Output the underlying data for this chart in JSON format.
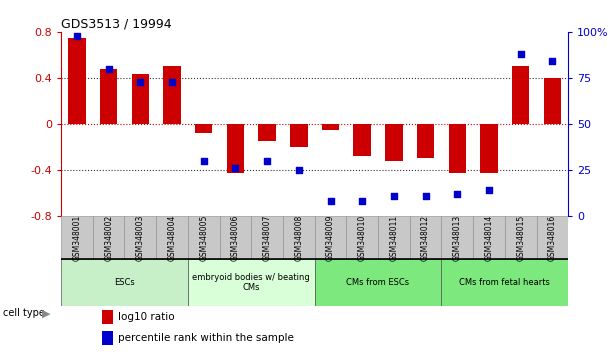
{
  "title": "GDS3513 / 19994",
  "samples": [
    "GSM348001",
    "GSM348002",
    "GSM348003",
    "GSM348004",
    "GSM348005",
    "GSM348006",
    "GSM348007",
    "GSM348008",
    "GSM348009",
    "GSM348010",
    "GSM348011",
    "GSM348012",
    "GSM348013",
    "GSM348014",
    "GSM348015",
    "GSM348016"
  ],
  "log10_ratio": [
    0.75,
    0.48,
    0.43,
    0.5,
    -0.08,
    -0.43,
    -0.15,
    -0.2,
    -0.05,
    -0.28,
    -0.32,
    -0.3,
    -0.43,
    -0.43,
    0.5,
    0.4
  ],
  "percentile_rank": [
    98,
    80,
    73,
    73,
    30,
    26,
    30,
    25,
    8,
    8,
    11,
    11,
    12,
    14,
    88,
    84
  ],
  "ylim": [
    -0.8,
    0.8
  ],
  "y2lim": [
    0,
    100
  ],
  "yticks": [
    -0.8,
    -0.4,
    0.0,
    0.4,
    0.8
  ],
  "ytick_labels": [
    "-0.8",
    "-0.4",
    "0",
    "0.4",
    "0.8"
  ],
  "y2ticks": [
    0,
    25,
    50,
    75,
    100
  ],
  "y2ticklabels": [
    "0",
    "25",
    "50",
    "75",
    "100%"
  ],
  "bar_color": "#cc0000",
  "dot_color": "#0000cc",
  "cell_types": [
    {
      "label": "ESCs",
      "start": 0,
      "end": 4,
      "color": "#c8f0c8"
    },
    {
      "label": "embryoid bodies w/ beating\nCMs",
      "start": 4,
      "end": 8,
      "color": "#d8ffd8"
    },
    {
      "label": "CMs from ESCs",
      "start": 8,
      "end": 12,
      "color": "#7de87d"
    },
    {
      "label": "CMs from fetal hearts",
      "start": 12,
      "end": 16,
      "color": "#7de87d"
    }
  ],
  "legend_items": [
    {
      "label": "log10 ratio",
      "color": "#cc0000"
    },
    {
      "label": "percentile rank within the sample",
      "color": "#0000cc"
    }
  ],
  "zero_line_color": "#cc0000",
  "hline_color": "#333333",
  "sample_box_color": "#c8c8c8",
  "sample_box_edge": "#888888"
}
